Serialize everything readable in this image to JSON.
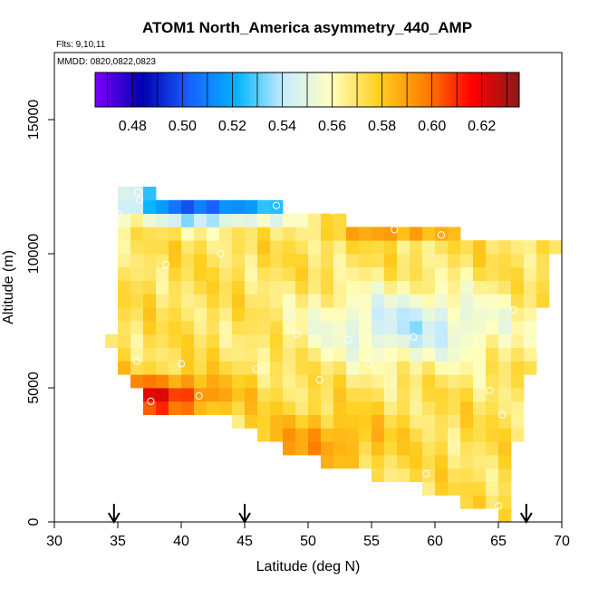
{
  "chart_data": {
    "type": "heatmap",
    "title": "ATOM1 North_America asymmetry_440_AMP",
    "flights_label": "Flts: 9,10,11",
    "dates_label": "MMDD: 0820,0822,0823",
    "xlabel": "Latitude (deg N)",
    "ylabel": "Altitude (m)",
    "xlim": [
      30,
      70
    ],
    "ylim": [
      0,
      17500
    ],
    "x_ticks": [
      30,
      35,
      40,
      45,
      50,
      55,
      60,
      65,
      70
    ],
    "y_ticks": [
      0,
      5000,
      10000,
      15000
    ],
    "colorbar": {
      "vmin": 0.465,
      "vmax": 0.635,
      "ticks": [
        0.48,
        0.5,
        0.52,
        0.54,
        0.56,
        0.58,
        0.6,
        0.62
      ],
      "tick_labels": [
        "0.48",
        "0.50",
        "0.52",
        "0.54",
        "0.56",
        "0.58",
        "0.60",
        "0.62"
      ],
      "colors": [
        "#7a00ff",
        "#0000b0",
        "#1860ff",
        "#00b4ff",
        "#c8ecff",
        "#ffffc0",
        "#ffd020",
        "#ff8000",
        "#ff0000",
        "#8b1a1a"
      ]
    },
    "grid": {
      "x_start": 35.0,
      "x_step": 1.0,
      "y_start": 0,
      "y_step": 500,
      "row_extents": [
        {
          "alt": 500,
          "lat_min": 65.0,
          "lat_max": 65.9
        },
        {
          "alt": 1000,
          "lat_min": 62.0,
          "lat_max": 65.9
        },
        {
          "alt": 1500,
          "lat_min": 59.0,
          "lat_max": 65.9
        },
        {
          "alt": 2000,
          "lat_min": 55.0,
          "lat_max": 65.9
        },
        {
          "alt": 2500,
          "lat_min": 51.0,
          "lat_max": 65.9
        },
        {
          "alt": 3000,
          "lat_min": 48.0,
          "lat_max": 65.9
        },
        {
          "alt": 3500,
          "lat_min": 46.0,
          "lat_max": 66.9
        },
        {
          "alt": 4000,
          "lat_min": 44.0,
          "lat_max": 66.9
        },
        {
          "alt": 4500,
          "lat_min": 37.0,
          "lat_max": 66.9
        },
        {
          "alt": 5000,
          "lat_min": 37.0,
          "lat_max": 66.9
        },
        {
          "alt": 5500,
          "lat_min": 36.0,
          "lat_max": 66.9
        },
        {
          "alt": 6000,
          "lat_min": 35.0,
          "lat_max": 67.9
        },
        {
          "alt": 6500,
          "lat_min": 35.0,
          "lat_max": 67.9
        },
        {
          "alt": 7000,
          "lat_min": 34.0,
          "lat_max": 67.9
        },
        {
          "alt": 7500,
          "lat_min": 35.0,
          "lat_max": 67.9
        },
        {
          "alt": 8000,
          "lat_min": 35.0,
          "lat_max": 67.9
        },
        {
          "alt": 8500,
          "lat_min": 35.0,
          "lat_max": 68.9
        },
        {
          "alt": 9000,
          "lat_min": 35.0,
          "lat_max": 68.9
        },
        {
          "alt": 9500,
          "lat_min": 35.0,
          "lat_max": 68.9
        },
        {
          "alt": 10000,
          "lat_min": 35.0,
          "lat_max": 68.9
        },
        {
          "alt": 10500,
          "lat_min": 35.0,
          "lat_max": 69.9
        },
        {
          "alt": 11000,
          "lat_min": 35.0,
          "lat_max": 61.9
        },
        {
          "alt": 11500,
          "lat_min": 35.0,
          "lat_max": 52.9
        },
        {
          "alt": 12000,
          "lat_min": 35.0,
          "lat_max": 47.9
        },
        {
          "alt": 12500,
          "lat_min": 35.0,
          "lat_max": 37.9
        }
      ],
      "value_field": "asymmetry_440_AMP, estimated from color: ~0.59-0.62 along the lower-left and upper edges (5000 m at 37-42 N, 11000 m at 53-61 N), ~0.54-0.55 in the interior (6000-8000 m, 47-65 N), ~0.49-0.52 at 11500-12500 m north of 35-48 N"
    },
    "flight_samples": [
      {
        "lat": 34.7,
        "alt": 7200
      },
      {
        "lat": 35.0,
        "alt": 11500
      },
      {
        "lat": 35.5,
        "alt": 12700
      },
      {
        "lat": 36.2,
        "alt": 12700
      },
      {
        "lat": 36.6,
        "alt": 12300
      },
      {
        "lat": 36.7,
        "alt": 12000
      },
      {
        "lat": 36.5,
        "alt": 6000
      },
      {
        "lat": 37.6,
        "alt": 4500
      },
      {
        "lat": 38.8,
        "alt": 9600
      },
      {
        "lat": 40.0,
        "alt": 5900
      },
      {
        "lat": 41.4,
        "alt": 4700
      },
      {
        "lat": 43.1,
        "alt": 10000
      },
      {
        "lat": 45.9,
        "alt": 5700
      },
      {
        "lat": 47.5,
        "alt": 11800
      },
      {
        "lat": 49.1,
        "alt": 7000
      },
      {
        "lat": 50.9,
        "alt": 5300
      },
      {
        "lat": 51.9,
        "alt": 11600
      },
      {
        "lat": 53.2,
        "alt": 6800
      },
      {
        "lat": 54.8,
        "alt": 5900
      },
      {
        "lat": 56.8,
        "alt": 10900
      },
      {
        "lat": 58.3,
        "alt": 6900
      },
      {
        "lat": 59.3,
        "alt": 1800
      },
      {
        "lat": 60.5,
        "alt": 10700
      },
      {
        "lat": 64.3,
        "alt": 4900
      },
      {
        "lat": 65.3,
        "alt": 4000
      },
      {
        "lat": 65.0,
        "alt": 600
      },
      {
        "lat": 66.2,
        "alt": 7900
      },
      {
        "lat": 69.8,
        "alt": 10900
      }
    ],
    "arrow_markers": [
      34.7,
      45.0,
      67.2
    ]
  }
}
